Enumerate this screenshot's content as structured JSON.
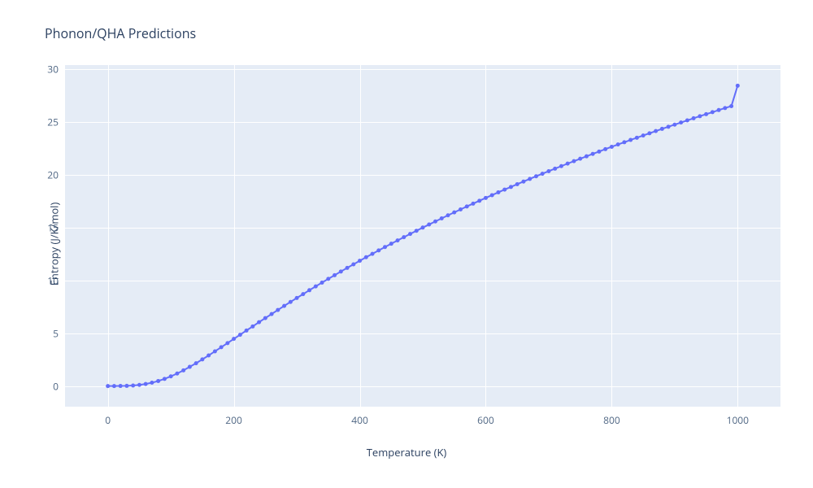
{
  "chart": {
    "type": "line_scatter",
    "title": "Phonon/QHA Predictions",
    "xlabel": "Temperature (K)",
    "ylabel": "Entropy (J/K/mol)",
    "background_color": "#ffffff",
    "plot_background_color": "#e5ecf6",
    "grid_color": "#ffffff",
    "title_color": "#2a3f5f",
    "axis_label_color": "#2a3f5f",
    "tick_color": "#506784",
    "title_fontsize": 16,
    "axis_label_fontsize": 13,
    "tick_fontsize": 12,
    "line_color": "#636efa",
    "marker_color": "#636efa",
    "marker_size": 5,
    "line_width": 2,
    "xlim": [
      -68,
      1068
    ],
    "ylim": [
      -1.95,
      30.4
    ],
    "xticks": [
      0,
      200,
      400,
      600,
      800,
      1000
    ],
    "yticks": [
      0,
      5,
      10,
      15,
      20,
      25,
      30
    ],
    "xtick_labels": [
      "0",
      "200",
      "400",
      "600",
      "800",
      "1000"
    ],
    "ytick_labels": [
      "0",
      "5",
      "10",
      "15",
      "20",
      "25",
      "30"
    ],
    "data": {
      "x": [
        0,
        10,
        20,
        30,
        40,
        50,
        60,
        70,
        80,
        90,
        100,
        110,
        120,
        130,
        140,
        150,
        160,
        170,
        180,
        190,
        200,
        210,
        220,
        230,
        240,
        250,
        260,
        270,
        280,
        290,
        300,
        310,
        320,
        330,
        340,
        350,
        360,
        370,
        380,
        390,
        400,
        410,
        420,
        430,
        440,
        450,
        460,
        470,
        480,
        490,
        500,
        510,
        520,
        530,
        540,
        550,
        560,
        570,
        580,
        590,
        600,
        610,
        620,
        630,
        640,
        650,
        660,
        670,
        680,
        690,
        700,
        710,
        720,
        730,
        740,
        750,
        760,
        770,
        780,
        790,
        800,
        810,
        820,
        830,
        840,
        850,
        860,
        870,
        880,
        890,
        900,
        910,
        920,
        930,
        940,
        950,
        960,
        970,
        980,
        990,
        1000
      ],
      "y": [
        0.0,
        0.0,
        0.01,
        0.02,
        0.05,
        0.11,
        0.2,
        0.32,
        0.48,
        0.68,
        0.92,
        1.19,
        1.49,
        1.82,
        2.16,
        2.53,
        2.9,
        3.29,
        3.68,
        4.07,
        4.47,
        4.86,
        5.26,
        5.65,
        6.05,
        6.44,
        6.82,
        7.21,
        7.59,
        7.97,
        8.34,
        8.71,
        9.08,
        9.44,
        9.8,
        10.15,
        10.5,
        10.85,
        11.19,
        11.53,
        11.87,
        12.2,
        12.52,
        12.85,
        13.17,
        13.48,
        13.79,
        14.1,
        14.41,
        14.71,
        15.01,
        15.3,
        15.59,
        15.88,
        16.17,
        16.45,
        16.73,
        17.01,
        17.28,
        17.55,
        17.82,
        18.08,
        18.35,
        18.61,
        18.86,
        19.12,
        19.37,
        19.62,
        19.87,
        20.11,
        20.35,
        20.59,
        20.83,
        21.07,
        21.3,
        21.53,
        21.76,
        21.99,
        22.21,
        22.44,
        22.66,
        22.88,
        23.09,
        23.31,
        23.52,
        23.73,
        23.94,
        24.15,
        24.36,
        24.56,
        24.76,
        24.96,
        25.16,
        25.36,
        25.56,
        25.75,
        25.94,
        26.14,
        26.33,
        26.51,
        28.45
      ]
    }
  }
}
